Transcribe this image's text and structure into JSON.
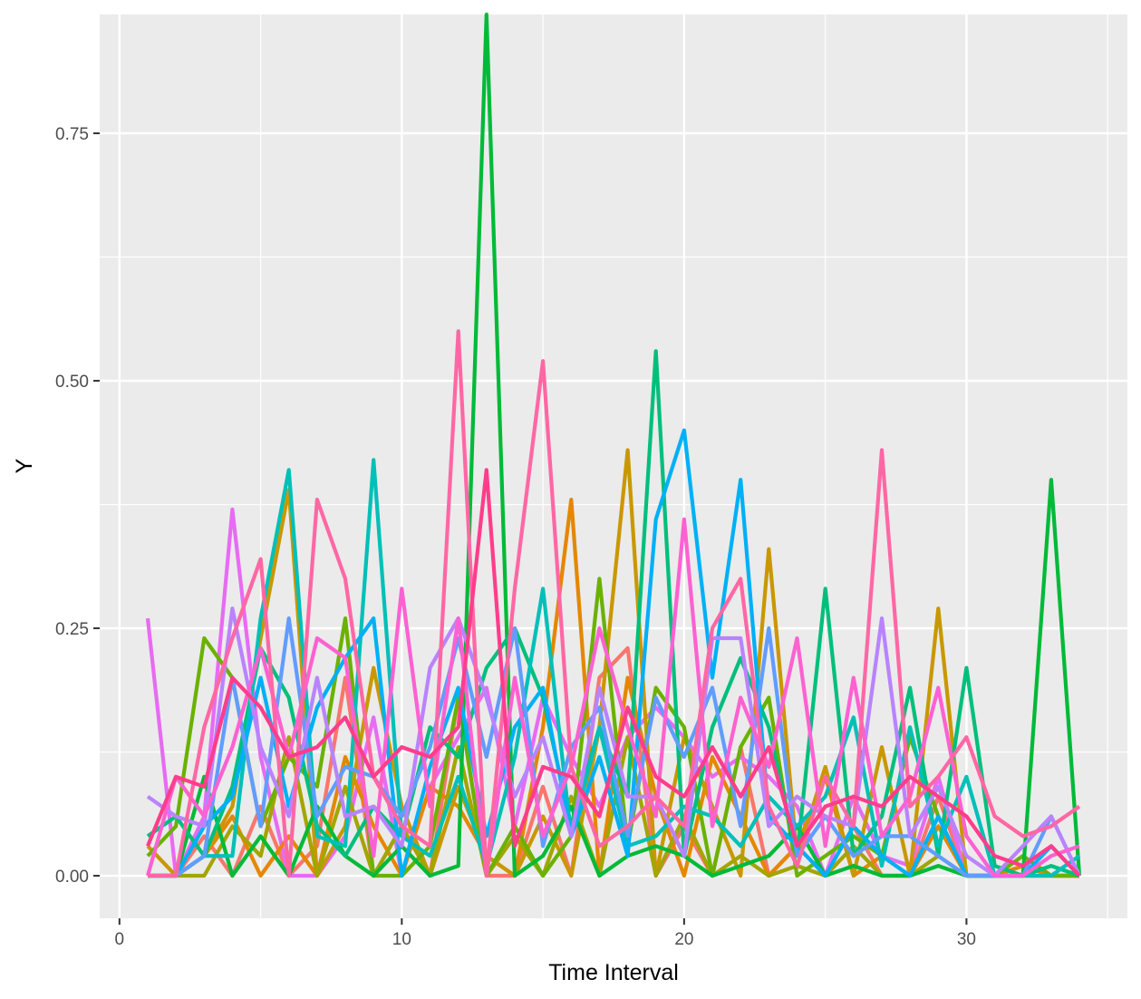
{
  "chart_data": {
    "type": "line",
    "title": "",
    "xlabel": "Time Interval",
    "ylabel": "Y",
    "xlim": [
      -0.7,
      35.7
    ],
    "ylim": [
      -0.043,
      0.87
    ],
    "x_ticks": [
      0,
      10,
      20,
      30
    ],
    "x_tick_labels": [
      "0",
      "10",
      "20",
      "30"
    ],
    "y_ticks": [
      0,
      0.25,
      0.5,
      0.75
    ],
    "y_tick_labels": [
      "0.00",
      "0.25",
      "0.50",
      "0.75"
    ],
    "grid": true,
    "legend": "none",
    "x": [
      1,
      2,
      3,
      4,
      5,
      6,
      7,
      8,
      9,
      10,
      11,
      12,
      13,
      14,
      15,
      16,
      17,
      18,
      19,
      20,
      21,
      22,
      23,
      24,
      25,
      26,
      27,
      28,
      29,
      30,
      31,
      32,
      33,
      34
    ],
    "series": [
      {
        "color": "#F8766D",
        "values": [
          0,
          0,
          0.04,
          0,
          0.07,
          0,
          0.03,
          0.2,
          0,
          0.05,
          0,
          0.18,
          0,
          0,
          0.09,
          0,
          0.2,
          0.23,
          0,
          0.05,
          0,
          0.13,
          0,
          0.03,
          0,
          0.05,
          0,
          0,
          0.08,
          0,
          0,
          0.02,
          0,
          0
        ]
      },
      {
        "color": "#E76BF3",
        "values": [
          0.26,
          0,
          0.06,
          0.37,
          0.12,
          0,
          0,
          0.04,
          0.16,
          0,
          0.09,
          0.14,
          0.19,
          0.05,
          0.18,
          0.12,
          0.07,
          0.14,
          0.17,
          0.14,
          0.1,
          0.12,
          0.1,
          0.07,
          0,
          0.08,
          0.02,
          0.01,
          0.1,
          0,
          0,
          0,
          0.03,
          0
        ]
      },
      {
        "color": "#E58700",
        "values": [
          0,
          0,
          0.02,
          0.06,
          0,
          0.04,
          0,
          0.12,
          0.05,
          0,
          0.09,
          0.07,
          0.02,
          0,
          0.15,
          0.38,
          0,
          0.2,
          0.08,
          0,
          0.12,
          0.06,
          0,
          0.03,
          0.1,
          0,
          0.02,
          0,
          0.05,
          0,
          0,
          0.01,
          0,
          0
        ]
      },
      {
        "color": "#C99800",
        "values": [
          0.03,
          0,
          0.02,
          0.07,
          0.24,
          0.39,
          0,
          0.05,
          0.21,
          0.07,
          0,
          0.09,
          0.02,
          0,
          0.06,
          0,
          0.15,
          0.43,
          0,
          0.14,
          0.07,
          0,
          0.33,
          0.02,
          0.11,
          0,
          0.13,
          0,
          0.27,
          0,
          0,
          0,
          0,
          0
        ]
      },
      {
        "color": "#A3A500",
        "values": [
          0,
          0,
          0,
          0.05,
          0.02,
          0.14,
          0,
          0.09,
          0,
          0.05,
          0,
          0.13,
          0,
          0.04,
          0,
          0.08,
          0,
          0.14,
          0,
          0.06,
          0,
          0.02,
          0,
          0.01,
          0,
          0.03,
          0,
          0,
          0.02,
          0,
          0,
          0,
          0,
          0
        ]
      },
      {
        "color": "#6BB100",
        "values": [
          0.02,
          0.05,
          0.24,
          0.2,
          0.05,
          0.12,
          0.09,
          0.26,
          0,
          0,
          0.03,
          0.18,
          0,
          0.05,
          0,
          0.04,
          0.3,
          0.03,
          0.19,
          0.15,
          0,
          0.13,
          0.18,
          0,
          0.02,
          0.04,
          0.02,
          0.14,
          0.06,
          0,
          0,
          0.02,
          0,
          0
        ]
      },
      {
        "color": "#00BA38",
        "values": [
          0,
          0,
          0.1,
          0,
          0.04,
          0,
          0.07,
          0.02,
          0,
          0.03,
          0,
          0.01,
          0.87,
          0,
          0.02,
          0.07,
          0,
          0.02,
          0.03,
          0.02,
          0,
          0.01,
          0.02,
          0.05,
          0,
          0.01,
          0,
          0,
          0.01,
          0,
          0,
          0,
          0.4,
          0
        ]
      },
      {
        "color": "#00BF7D",
        "values": [
          0.04,
          0.06,
          0.02,
          0.09,
          0.23,
          0.18,
          0.05,
          0.02,
          0.07,
          0.04,
          0.15,
          0.12,
          0.21,
          0.25,
          0.18,
          0.05,
          0.15,
          0.08,
          0.53,
          0.02,
          0.15,
          0.22,
          0.15,
          0.02,
          0.29,
          0.02,
          0.06,
          0.19,
          0.02,
          0.21,
          0.01,
          0,
          0.01,
          0
        ]
      },
      {
        "color": "#00C0B8",
        "values": [
          0,
          0,
          0.02,
          0.02,
          0.26,
          0.41,
          0.04,
          0.03,
          0.42,
          0.04,
          0.02,
          0.1,
          0.01,
          0.12,
          0.29,
          0.04,
          0.15,
          0.03,
          0.04,
          0.07,
          0.06,
          0.03,
          0.08,
          0.05,
          0.08,
          0.16,
          0.01,
          0.15,
          0.03,
          0.1,
          0,
          0,
          0,
          0.02
        ]
      },
      {
        "color": "#00B0F6",
        "values": [
          0,
          0,
          0.05,
          0.08,
          0.2,
          0.07,
          0.17,
          0.22,
          0.26,
          0,
          0.11,
          0.19,
          0.04,
          0.15,
          0.19,
          0.04,
          0.12,
          0.02,
          0.36,
          0.45,
          0.2,
          0.4,
          0.06,
          0.03,
          0,
          0.05,
          0.02,
          0,
          0.06,
          0,
          0,
          0,
          0.03,
          0
        ]
      },
      {
        "color": "#619CFF",
        "values": [
          0,
          0,
          0.02,
          0.2,
          0.05,
          0.26,
          0.06,
          0.11,
          0.1,
          0.06,
          0.13,
          0.24,
          0.12,
          0.25,
          0.03,
          0.13,
          0.17,
          0.04,
          0.18,
          0.12,
          0.19,
          0.05,
          0.25,
          0.02,
          0.06,
          0.02,
          0.04,
          0.04,
          0.02,
          0,
          0,
          0,
          0.06,
          0
        ]
      },
      {
        "color": "#B983FF",
        "values": [
          0.08,
          0.06,
          0.05,
          0.27,
          0.13,
          0.06,
          0.2,
          0.06,
          0.07,
          0.03,
          0.21,
          0.26,
          0.18,
          0.08,
          0.14,
          0.04,
          0.19,
          0.08,
          0.08,
          0.02,
          0.24,
          0.24,
          0.05,
          0.08,
          0.06,
          0.05,
          0.26,
          0.04,
          0.09,
          0.02,
          0,
          0.03,
          0.06,
          0
        ]
      },
      {
        "color": "#FD61D1",
        "values": [
          0,
          0.1,
          0.06,
          0.13,
          0.23,
          0.12,
          0.24,
          0.22,
          0.02,
          0.29,
          0.07,
          0.26,
          0,
          0.2,
          0.04,
          0.11,
          0.25,
          0.15,
          0.06,
          0.36,
          0.05,
          0.18,
          0.11,
          0.24,
          0.03,
          0.2,
          0.04,
          0.08,
          0.19,
          0.04,
          0,
          0,
          0.02,
          0.03
        ]
      },
      {
        "color": "#FF67A4",
        "values": [
          0,
          0,
          0.15,
          0.24,
          0.32,
          0,
          0.38,
          0.3,
          0.1,
          0.05,
          0.03,
          0.55,
          0,
          0.29,
          0.52,
          0.11,
          0.03,
          0.05,
          0.08,
          0.05,
          0.25,
          0.3,
          0.07,
          0.01,
          0.1,
          0.05,
          0.43,
          0.07,
          0.1,
          0.14,
          0.06,
          0.04,
          0.05,
          0.07
        ]
      },
      {
        "color": "#FF3D8B",
        "values": [
          0.03,
          0.1,
          0.09,
          0.2,
          0.17,
          0.12,
          0.13,
          0.16,
          0.1,
          0.13,
          0.12,
          0.15,
          0.41,
          0.03,
          0.11,
          0.1,
          0.06,
          0.17,
          0.1,
          0.08,
          0.13,
          0.08,
          0.13,
          0.03,
          0.07,
          0.08,
          0.07,
          0.1,
          0.08,
          0.06,
          0.02,
          0.01,
          0.03,
          0
        ]
      }
    ]
  }
}
